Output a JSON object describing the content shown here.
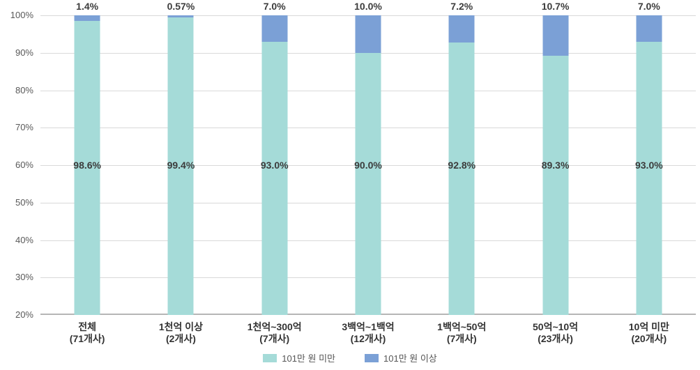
{
  "chart_data": {
    "type": "bar",
    "stacked": true,
    "title": "",
    "xlabel": "",
    "ylabel": "",
    "ylim": [
      20,
      100
    ],
    "ytick_step": 10,
    "grid": true,
    "legend_position": "bottom",
    "yticks": [
      "100%",
      "90%",
      "80%",
      "70%",
      "60%",
      "50%",
      "40%",
      "30%",
      "20%"
    ],
    "categories": [
      "전체",
      "1천억 이상",
      "1천억~300억",
      "3백억~1백억",
      "1백억~50억",
      "50억~10억",
      "10억 미만"
    ],
    "category_counts": [
      "(71개사)",
      "(2개사)",
      "(7개사)",
      "(12개사)",
      "(7개사)",
      "(23개사)",
      "(20개사)"
    ],
    "series": [
      {
        "name": "101만 원 미만",
        "color": "#a5dbd8",
        "values": [
          98.6,
          99.4,
          93.0,
          90.0,
          92.8,
          89.3,
          93.0
        ],
        "labels": [
          "98.6%",
          "99.4%",
          "93.0%",
          "90.0%",
          "92.8%",
          "89.3%",
          "93.0%"
        ]
      },
      {
        "name": "101만 원 이상",
        "color": "#7ba0d6",
        "values": [
          1.4,
          0.57,
          7.0,
          10.0,
          7.2,
          10.7,
          7.0
        ],
        "labels": [
          "1.4%",
          "0.57%",
          "7.0%",
          "10.0%",
          "7.2%",
          "10.7%",
          "7.0%"
        ]
      }
    ],
    "colors": {
      "gridline": "#d9d9d9",
      "axis_line": "#b5b5b5"
    }
  }
}
